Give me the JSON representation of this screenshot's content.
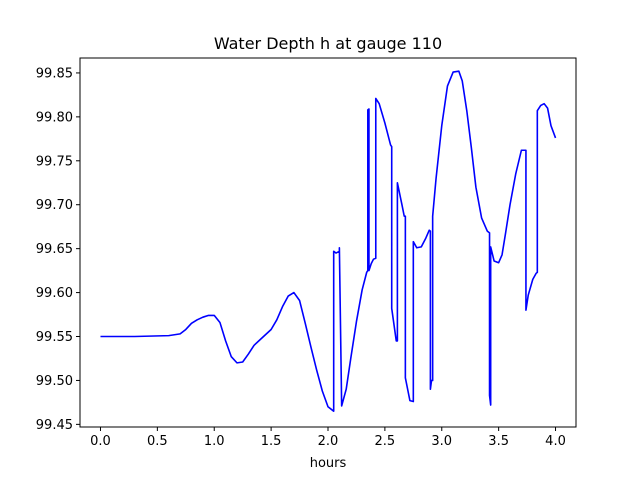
{
  "chart_data": {
    "type": "line",
    "title": "Water Depth h at gauge 110",
    "xlabel": "hours",
    "ylabel": "",
    "xlim": [
      -0.18,
      4.18
    ],
    "ylim": [
      99.447,
      99.867
    ],
    "xticks": [
      0.0,
      0.5,
      1.0,
      1.5,
      2.0,
      2.5,
      3.0,
      3.5,
      4.0
    ],
    "xtick_labels": [
      "0.0",
      "0.5",
      "1.0",
      "1.5",
      "2.0",
      "2.5",
      "3.0",
      "3.5",
      "4.0"
    ],
    "yticks": [
      99.45,
      99.5,
      99.55,
      99.6,
      99.65,
      99.7,
      99.75,
      99.8,
      99.85
    ],
    "ytick_labels": [
      "99.45",
      "99.50",
      "99.55",
      "99.60",
      "99.65",
      "99.70",
      "99.75",
      "99.80",
      "99.85"
    ],
    "grid": false,
    "legend": "none",
    "colors": {
      "line": "#0000ff",
      "axes": "#000000",
      "background": "#ffffff"
    },
    "series": [
      {
        "x": [
          0.0,
          0.3,
          0.6,
          0.7,
          0.75,
          0.8,
          0.85,
          0.9,
          0.95,
          1.0,
          1.05,
          1.1,
          1.15,
          1.2,
          1.25,
          1.3,
          1.35,
          1.4,
          1.5,
          1.55,
          1.6,
          1.65,
          1.7,
          1.75,
          1.8,
          1.85,
          1.9,
          1.95,
          2.0,
          2.05,
          2.05,
          2.07,
          2.1,
          2.1,
          2.12,
          2.16,
          2.2,
          2.25,
          2.3,
          2.34,
          2.35,
          2.35,
          2.36,
          2.36,
          2.38,
          2.4,
          2.42,
          2.42,
          2.45,
          2.5,
          2.55,
          2.56,
          2.56,
          2.6,
          2.61,
          2.61,
          2.65,
          2.67,
          2.68,
          2.68,
          2.72,
          2.75,
          2.75,
          2.78,
          2.82,
          2.86,
          2.89,
          2.9,
          2.9,
          2.91,
          2.92,
          2.92,
          2.95,
          3.0,
          3.05,
          3.1,
          3.15,
          3.18,
          3.22,
          3.26,
          3.3,
          3.35,
          3.4,
          3.42,
          3.42,
          3.43,
          3.43,
          3.46,
          3.5,
          3.53,
          3.56,
          3.6,
          3.65,
          3.7,
          3.74,
          3.74,
          3.76,
          3.8,
          3.83,
          3.84,
          3.84,
          3.87,
          3.9,
          3.93,
          3.96,
          4.0
        ],
        "y": [
          99.55,
          99.55,
          99.551,
          99.553,
          99.558,
          99.565,
          99.569,
          99.572,
          99.574,
          99.574,
          99.566,
          99.545,
          99.527,
          99.52,
          99.521,
          99.53,
          99.54,
          99.546,
          99.558,
          99.569,
          99.584,
          99.596,
          99.6,
          99.591,
          99.565,
          99.538,
          99.512,
          99.488,
          99.47,
          99.465,
          99.647,
          99.645,
          99.647,
          99.651,
          99.471,
          99.49,
          99.525,
          99.567,
          99.603,
          99.623,
          99.625,
          99.808,
          99.809,
          99.625,
          99.633,
          99.638,
          99.639,
          99.821,
          99.815,
          99.793,
          99.768,
          99.766,
          99.582,
          99.545,
          99.545,
          99.725,
          99.7,
          99.687,
          99.687,
          99.503,
          99.477,
          99.476,
          99.658,
          99.651,
          99.652,
          99.662,
          99.671,
          99.67,
          99.49,
          99.5,
          99.5,
          99.687,
          99.73,
          99.79,
          99.835,
          99.851,
          99.852,
          99.841,
          99.807,
          99.765,
          99.72,
          99.685,
          99.67,
          99.668,
          99.483,
          99.472,
          99.652,
          99.636,
          99.634,
          99.643,
          99.667,
          99.7,
          99.735,
          99.762,
          99.762,
          99.58,
          99.597,
          99.615,
          99.622,
          99.623,
          99.807,
          99.813,
          99.815,
          99.81,
          99.79,
          99.776
        ]
      }
    ]
  }
}
